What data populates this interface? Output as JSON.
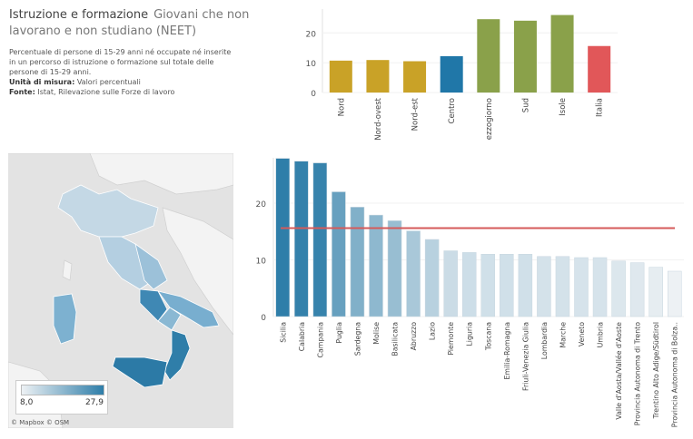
{
  "header": {
    "title_part1": "Istruzione e formazione",
    "title_part2": "Giovani che non lavorano e non studiano (NEET)",
    "description": "Percentuale di persone di 15-29 anni né occupate né inserite in un percorso di istruzione o formazione sul totale delle persone di 15-29 anni.",
    "unit_label": "Unità di misura:",
    "unit_value": "Valori percentuali",
    "source_label": "Fonte:",
    "source_value": "Istat, Rilevazione sulle Forze di lavoro"
  },
  "map": {
    "legend_min": "8,0",
    "legend_max": "27,9",
    "attribution": "© Mapbox  © OSM"
  },
  "chart_data": [
    {
      "type": "bar",
      "categories": [
        "Nord",
        "Nord-ovest",
        "Nord-est",
        "Centro",
        "Mezzogiorno",
        "Sud",
        "Isole",
        "Italia"
      ],
      "values": [
        10.7,
        10.9,
        10.5,
        12.2,
        24.6,
        24.1,
        26.0,
        15.6
      ],
      "colors": [
        "#c9a227",
        "#c9a227",
        "#c9a227",
        "#2077a8",
        "#8aa14a",
        "#8aa14a",
        "#8aa14a",
        "#e15759"
      ],
      "yticks": [
        0,
        10,
        20
      ],
      "ylim": [
        0,
        28
      ]
    },
    {
      "type": "bar",
      "categories": [
        "Sicilia",
        "Calabria",
        "Campania",
        "Puglia",
        "Sardegna",
        "Molise",
        "Basilicata",
        "Abruzzo",
        "Lazio",
        "Piemonte",
        "Liguria",
        "Toscana",
        "Emilia-Romagna",
        "Friuli-Venezia Giulia",
        "Lombardia",
        "Marche",
        "Veneto",
        "Umbria",
        "Valle d'Aosta/Vallée d'Aoste",
        "Provincia Autonoma di Trento",
        "Trentino Alto Adige/Südtirol",
        "Provincia Autonoma di Bolza.."
      ],
      "values": [
        27.9,
        27.4,
        27.1,
        22.0,
        19.3,
        17.9,
        16.9,
        15.1,
        13.6,
        11.6,
        11.3,
        11.0,
        11.0,
        11.0,
        10.6,
        10.6,
        10.4,
        10.4,
        9.8,
        9.5,
        8.7,
        8.0
      ],
      "reference_line": 15.6,
      "reference_color": "#d55a5a",
      "yticks": [
        0,
        10,
        20
      ],
      "ylim": [
        0,
        28
      ],
      "color_scale": [
        "#edf1f4",
        "#2f7ea9"
      ]
    }
  ]
}
